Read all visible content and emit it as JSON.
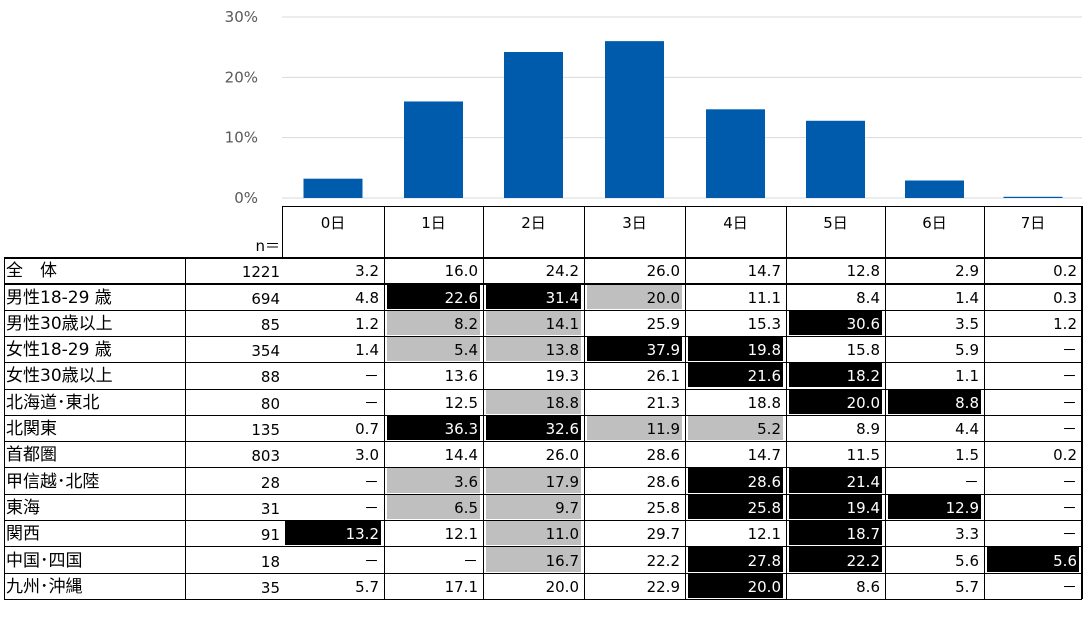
{
  "chart_data": {
    "type": "bar",
    "categories": [
      "0日",
      "1日",
      "2日",
      "3日",
      "4日",
      "5日",
      "6日",
      "7日"
    ],
    "values": [
      3.2,
      16.0,
      24.2,
      26.0,
      14.7,
      12.8,
      2.9,
      0.2
    ],
    "ylim": [
      0,
      30
    ],
    "yticks": [
      "30%",
      "20%",
      "10%",
      "0%"
    ],
    "bar_color": "#005BAC",
    "grid": true
  },
  "table": {
    "n_label": "n＝",
    "rows": [
      {
        "label": "全　体",
        "n": "1221",
        "values": [
          "3.2",
          "16.0",
          "24.2",
          "26.0",
          "14.7",
          "12.8",
          "2.9",
          "0.2"
        ],
        "shade": [
          "",
          "",
          "",
          "",
          "",
          "",
          "",
          ""
        ]
      },
      {
        "label": "男性18-29 歳",
        "n": "694",
        "values": [
          "4.8",
          "22.6",
          "31.4",
          "20.0",
          "11.1",
          "8.4",
          "1.4",
          "0.3"
        ],
        "shade": [
          "",
          "b",
          "b",
          "g",
          "",
          "",
          "",
          ""
        ]
      },
      {
        "label": "男性30歳以上",
        "n": "85",
        "values": [
          "1.2",
          "8.2",
          "14.1",
          "25.9",
          "15.3",
          "30.6",
          "3.5",
          "1.2"
        ],
        "shade": [
          "",
          "g",
          "g",
          "",
          "",
          "b",
          "",
          ""
        ]
      },
      {
        "label": "女性18-29 歳",
        "n": "354",
        "values": [
          "1.4",
          "5.4",
          "13.8",
          "37.9",
          "19.8",
          "15.8",
          "5.9",
          "－"
        ],
        "shade": [
          "",
          "g",
          "g",
          "b",
          "b",
          "",
          "",
          ""
        ]
      },
      {
        "label": "女性30歳以上",
        "n": "88",
        "values": [
          "－",
          "13.6",
          "19.3",
          "26.1",
          "21.6",
          "18.2",
          "1.1",
          "－"
        ],
        "shade": [
          "",
          "",
          "",
          "",
          "b",
          "b",
          "",
          ""
        ]
      },
      {
        "label": "北海道･東北",
        "n": "80",
        "values": [
          "－",
          "12.5",
          "18.8",
          "21.3",
          "18.8",
          "20.0",
          "8.8",
          "－"
        ],
        "shade": [
          "",
          "",
          "g",
          "",
          "",
          "b",
          "b",
          ""
        ]
      },
      {
        "label": "北関東",
        "n": "135",
        "values": [
          "0.7",
          "36.3",
          "32.6",
          "11.9",
          "5.2",
          "8.9",
          "4.4",
          "－"
        ],
        "shade": [
          "",
          "b",
          "b",
          "g",
          "g",
          "",
          "",
          ""
        ]
      },
      {
        "label": "首都圏",
        "n": "803",
        "values": [
          "3.0",
          "14.4",
          "26.0",
          "28.6",
          "14.7",
          "11.5",
          "1.5",
          "0.2"
        ],
        "shade": [
          "",
          "",
          "",
          "",
          "",
          "",
          "",
          ""
        ]
      },
      {
        "label": "甲信越･北陸",
        "n": "28",
        "values": [
          "－",
          "3.6",
          "17.9",
          "28.6",
          "28.6",
          "21.4",
          "－",
          "－"
        ],
        "shade": [
          "",
          "g",
          "g",
          "",
          "b",
          "b",
          "",
          ""
        ]
      },
      {
        "label": "東海",
        "n": "31",
        "values": [
          "－",
          "6.5",
          "9.7",
          "25.8",
          "25.8",
          "19.4",
          "12.9",
          "－"
        ],
        "shade": [
          "",
          "g",
          "g",
          "",
          "b",
          "b",
          "b",
          ""
        ]
      },
      {
        "label": "関西",
        "n": "91",
        "values": [
          "13.2",
          "12.1",
          "11.0",
          "29.7",
          "12.1",
          "18.7",
          "3.3",
          "－"
        ],
        "shade": [
          "b",
          "",
          "g",
          "",
          "",
          "b",
          "",
          ""
        ]
      },
      {
        "label": "中国･四国",
        "n": "18",
        "values": [
          "－",
          "－",
          "16.7",
          "22.2",
          "27.8",
          "22.2",
          "5.6",
          "5.6"
        ],
        "shade": [
          "",
          "",
          "g",
          "",
          "b",
          "b",
          "",
          "b"
        ]
      },
      {
        "label": "九州･沖縄",
        "n": "35",
        "values": [
          "5.7",
          "17.1",
          "20.0",
          "22.9",
          "20.0",
          "8.6",
          "5.7",
          "－"
        ],
        "shade": [
          "",
          "",
          "",
          "",
          "b",
          "",
          "",
          ""
        ]
      }
    ]
  }
}
